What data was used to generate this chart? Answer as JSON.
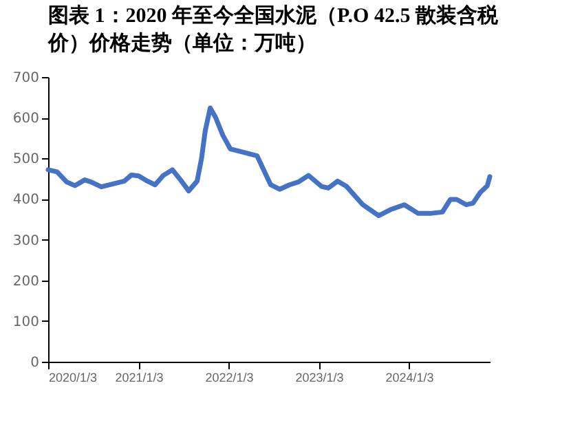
{
  "chart_data": {
    "type": "line",
    "title": "图表 1：2020 年至今全国水泥（P.O 42.5 散装含税价）价格走势（单位：万吨）",
    "x": [
      "2020-01-03",
      "2020-02-08",
      "2020-03-18",
      "2020-04-20",
      "2020-05-30",
      "2020-06-25",
      "2020-08-05",
      "2020-09-28",
      "2020-11-06",
      "2020-12-05",
      "2021-01-03",
      "2021-02-08",
      "2021-03-11",
      "2021-04-13",
      "2021-05-20",
      "2021-06-22",
      "2021-07-25",
      "2021-08-28",
      "2021-09-15",
      "2021-09-30",
      "2021-10-20",
      "2021-11-10",
      "2021-12-10",
      "2022-01-10",
      "2022-03-22",
      "2022-04-28",
      "2022-05-28",
      "2022-06-22",
      "2022-07-28",
      "2022-09-06",
      "2022-10-12",
      "2022-11-22",
      "2023-01-14",
      "2023-02-10",
      "2023-03-20",
      "2023-04-25",
      "2023-06-30",
      "2023-09-02",
      "2023-10-20",
      "2023-12-15",
      "2024-02-08",
      "2024-04-03",
      "2024-05-17",
      "2024-06-18",
      "2024-07-14",
      "2024-08-22",
      "2024-09-18",
      "2024-10-17",
      "2024-11-15",
      "2024-11-25"
    ],
    "series": [
      {
        "color": "#4472c4",
        "values": [
          472,
          467,
          442,
          433,
          447,
          442,
          430,
          438,
          444,
          459,
          457,
          444,
          435,
          458,
          472,
          447,
          420,
          444,
          500,
          568,
          624,
          602,
          557,
          523,
          512,
          506,
          467,
          435,
          424,
          435,
          442,
          458,
          431,
          427,
          444,
          431,
          386,
          359,
          374,
          386,
          365,
          365,
          368,
          399,
          399,
          386,
          390,
          416,
          433,
          455
        ]
      }
    ],
    "xlim": [
      "2020-01-03",
      "2024-11-25"
    ],
    "xticks": [
      {
        "value": "2020-01-03",
        "label": "2020/1/3"
      },
      {
        "value": "2021-01-03",
        "label": "2021/1/3"
      },
      {
        "value": "2022-01-03",
        "label": "2022/1/3"
      },
      {
        "value": "2023-01-03",
        "label": "2023/1/3"
      },
      {
        "value": "2024-01-03",
        "label": "2024/1/3"
      }
    ],
    "ylim": [
      0,
      700
    ],
    "yticks": [
      0,
      100,
      200,
      300,
      400,
      500,
      600,
      700
    ],
    "grid": false,
    "marker": "none",
    "line_style": "solid"
  }
}
